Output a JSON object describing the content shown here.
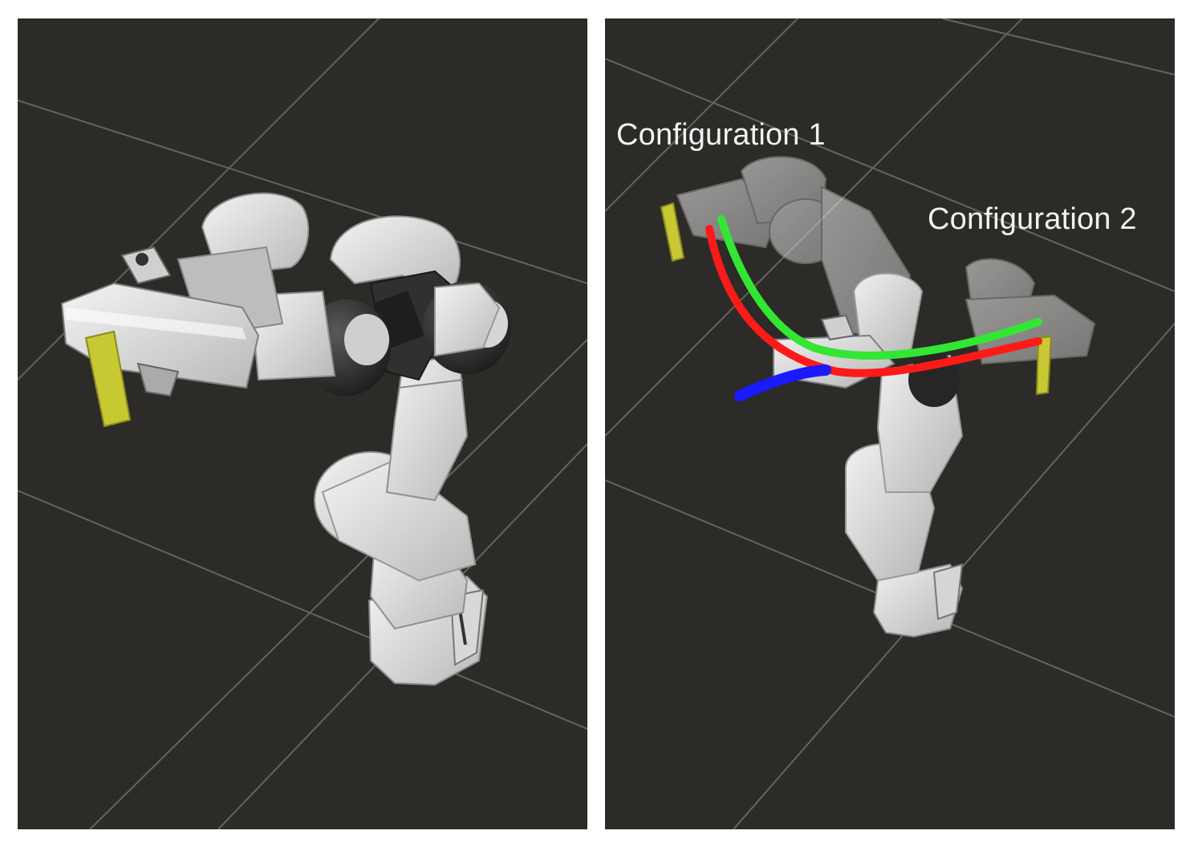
{
  "panels": {
    "left": {},
    "right": {
      "labels": {
        "config_1": "Configuration 1",
        "config_2": "Configuration 2"
      }
    }
  },
  "colors": {
    "background": "#2c2b28",
    "grid": "#6e6e68",
    "robot": "#e6e6e6",
    "robot_dark": "#2a2a2a",
    "gripper": "#c8c832",
    "trajectory_red": "#ff1a1a",
    "trajectory_green": "#33e633",
    "trajectory_blue": "#1a1aff"
  }
}
